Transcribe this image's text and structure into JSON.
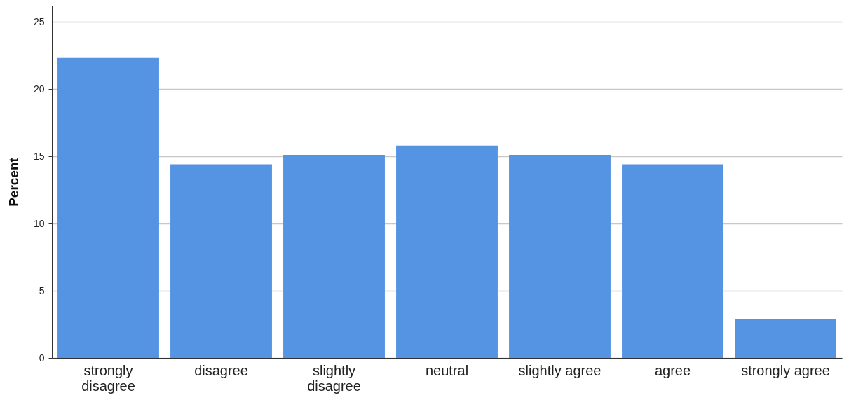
{
  "chart_data": {
    "type": "bar",
    "ylabel": "Percent",
    "categories": [
      "strongly disagree",
      "disagree",
      "slightly disagree",
      "neutral",
      "slightly agree",
      "agree",
      "strongly agree"
    ],
    "values": [
      22.3,
      14.4,
      15.1,
      15.8,
      15.1,
      14.4,
      2.9
    ],
    "color": "#5593e3",
    "ylim": [
      0,
      26.2
    ],
    "yticks": [
      0,
      5,
      10,
      15,
      20,
      25
    ],
    "grid": "y"
  }
}
